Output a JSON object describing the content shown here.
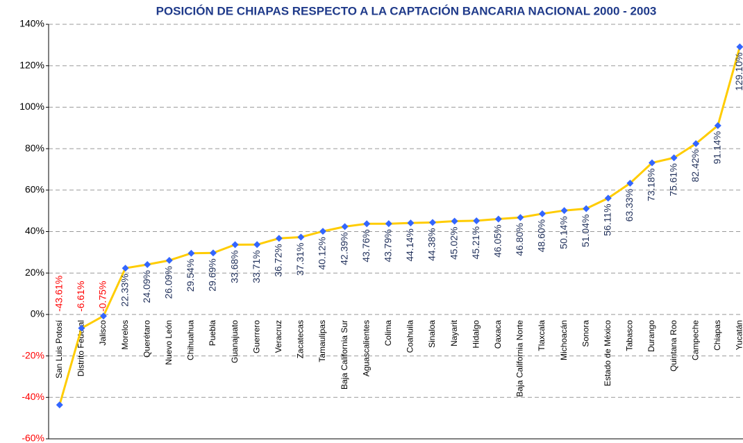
{
  "chart_data": {
    "type": "line",
    "title": "POSICIÓN DE CHIAPAS RESPECTO A LA CAPTACIÓN BANCARIA NACIONAL 2000 - 2003",
    "categories": [
      "San Luis Potosí",
      "Distrito Federal",
      "Jalisco",
      "Morelos",
      "Querétaro",
      "Nuevo León",
      "Chihuahua",
      "Puebla",
      "Guanajuato",
      "Guerrero",
      "Veracruz",
      "Zacatecas",
      "Tamaulipas",
      "Baja California Sur",
      "Aguascalientes",
      "Colima",
      "Coahuila",
      "Sinaloa",
      "Nayarit",
      "Hidalgo",
      "Oaxaca",
      "Baja California Norte",
      "Tlaxcala",
      "Michoacán",
      "Sonora",
      "Estado de México",
      "Tabasco",
      "Durango",
      "Quintana Roo",
      "Campeche",
      "Chiapas",
      "Yucatán"
    ],
    "values": [
      -43.61,
      -6.61,
      -0.75,
      22.33,
      24.09,
      26.09,
      29.54,
      29.69,
      33.68,
      33.71,
      36.72,
      37.31,
      40.12,
      42.39,
      43.76,
      43.79,
      44.14,
      44.38,
      45.02,
      45.21,
      46.05,
      46.8,
      48.6,
      50.14,
      51.04,
      56.11,
      63.33,
      73.18,
      75.61,
      82.42,
      91.14,
      129.1
    ],
    "value_labels": [
      "-43.61%",
      "-6.61%",
      "-0.75%",
      "22.33%",
      "24.09%",
      "26.09%",
      "29.54%",
      "29.69%",
      "33.68%",
      "33.71%",
      "36.72%",
      "37.31%",
      "40.12%",
      "42.39%",
      "43.76%",
      "43.79%",
      "44.14%",
      "44.38%",
      "45.02%",
      "45.21%",
      "46.05%",
      "46.80%",
      "48.60%",
      "50.14%",
      "51.04%",
      "56.11%",
      "63.33%",
      "73.18%",
      "75.61%",
      "82.42%",
      "91.14%",
      "129.10%"
    ],
    "color": "#ffcc00",
    "marker_color": "#3366ff",
    "ylim": [
      -60,
      140
    ],
    "yticks": [
      {
        "value": -60,
        "label": "-60%"
      },
      {
        "value": -40,
        "label": "-40%"
      },
      {
        "value": -20,
        "label": "-20%"
      },
      {
        "value": 0,
        "label": "0%"
      },
      {
        "value": 20,
        "label": "20%"
      },
      {
        "value": 40,
        "label": "40%"
      },
      {
        "value": 60,
        "label": "60%"
      },
      {
        "value": 80,
        "label": "80%"
      },
      {
        "value": 100,
        "label": "100%"
      },
      {
        "value": 120,
        "label": "120%"
      },
      {
        "value": 140,
        "label": "140%"
      }
    ],
    "grid": true
  }
}
